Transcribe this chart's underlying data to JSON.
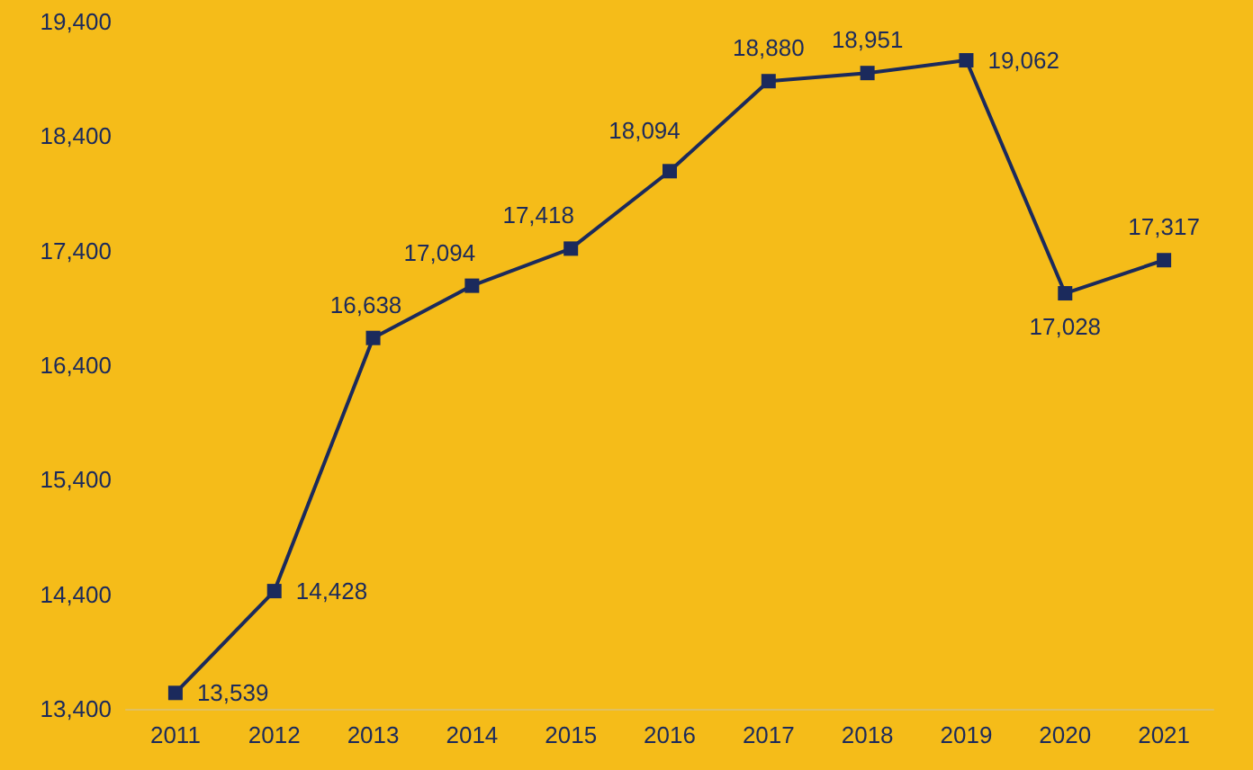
{
  "chart_data": {
    "type": "line",
    "categories": [
      "2011",
      "2012",
      "2013",
      "2014",
      "2015",
      "2016",
      "2017",
      "2018",
      "2019",
      "2020",
      "2021"
    ],
    "series": [
      {
        "color": "#1b2a5c",
        "values": [
          13539,
          14428,
          16638,
          17094,
          17418,
          18094,
          18880,
          18951,
          19062,
          17028,
          17317
        ],
        "value_labels": [
          "13,539",
          "14,428",
          "16,638",
          "17,094",
          "17,418",
          "18,094",
          "18,880",
          "18,951",
          "19,062",
          "17,028",
          "17,317"
        ]
      }
    ],
    "ylim": [
      13400,
      19400
    ],
    "yticks": [
      {
        "value": 13400,
        "label": "13,400"
      },
      {
        "value": 14400,
        "label": "14,400"
      },
      {
        "value": 15400,
        "label": "15,400"
      },
      {
        "value": 16400,
        "label": "16,400"
      },
      {
        "value": 17400,
        "label": "17,400"
      },
      {
        "value": 18400,
        "label": "18,400"
      },
      {
        "value": 19400,
        "label": "19,400"
      }
    ],
    "grid": false,
    "marker": "square",
    "line_style": "solid"
  }
}
